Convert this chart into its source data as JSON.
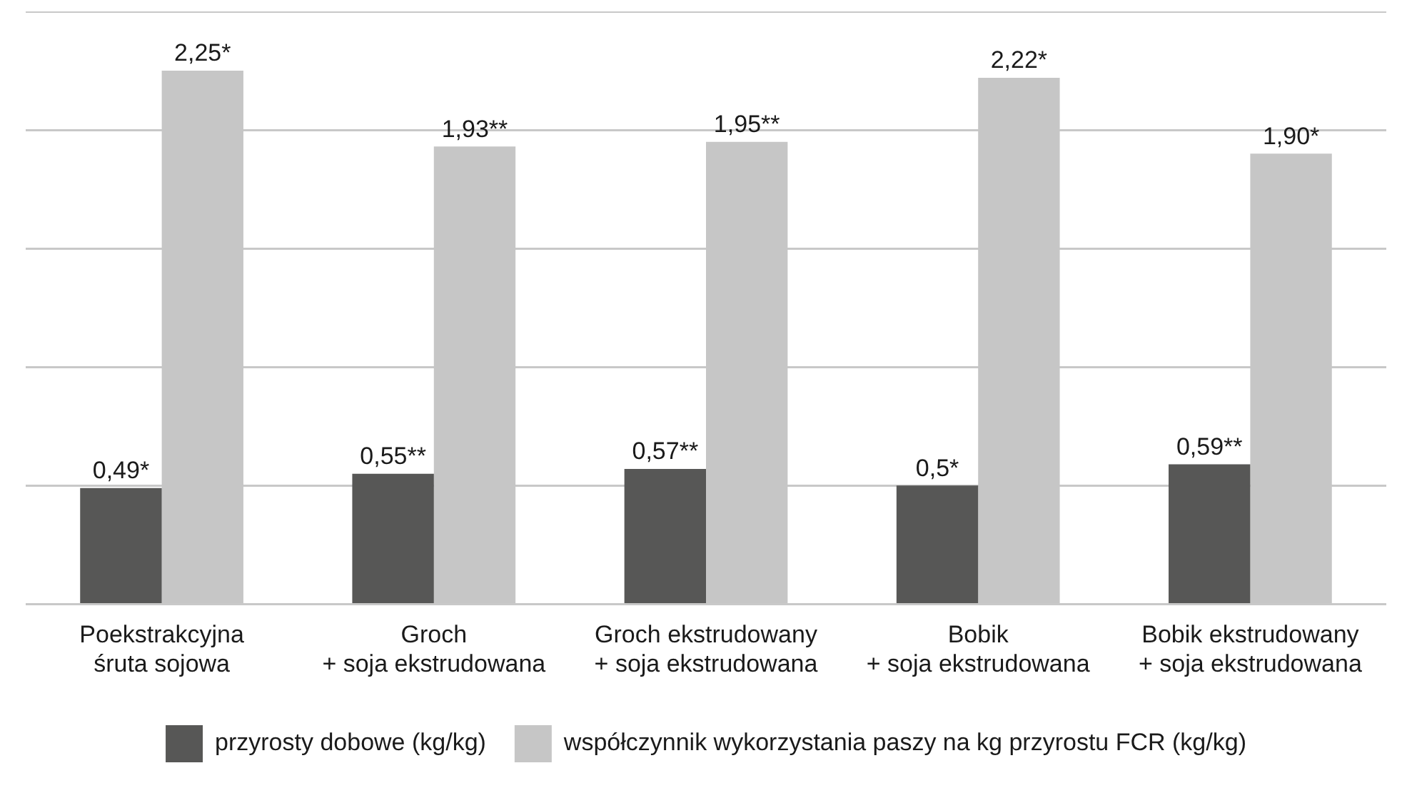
{
  "chart_data": {
    "type": "bar",
    "categories": [
      "Poekstrakcyjna\nśruta sojowa",
      "Groch\n+ soja ekstrudowana",
      "Groch ekstrudowany\n+ soja ekstrudowana",
      "Bobik\n+ soja ekstrudowana",
      "Bobik ekstrudowany\n+ soja ekstrudowana"
    ],
    "series": [
      {
        "name": "przyrosty dobowe (kg/kg)",
        "color": "#575756",
        "values": [
          0.49,
          0.55,
          0.57,
          0.5,
          0.59
        ],
        "value_labels": [
          "0,49*",
          "0,55**",
          "0,57**",
          "0,5*",
          "0,59**"
        ]
      },
      {
        "name": "współczynnik wykorzystania paszy na kg przyrostu FCR (kg/kg)",
        "color": "#c6c6c6",
        "values": [
          2.25,
          1.93,
          1.95,
          2.22,
          1.9
        ],
        "value_labels": [
          "2,25*",
          "1,93**",
          "1,95**",
          "2,22*",
          "1,90*"
        ]
      }
    ],
    "ylim": [
      0,
      2.5
    ],
    "yticks": [
      {
        "value": 0,
        "label": null
      },
      {
        "value": 0.5,
        "label": null
      },
      {
        "value": 1,
        "label": null
      },
      {
        "value": 1.5,
        "label": null
      },
      {
        "value": 2,
        "label": null
      },
      {
        "value": 2.5,
        "label": null
      }
    ],
    "grid": "y",
    "legend": "bottom",
    "tick_labels": "x"
  }
}
